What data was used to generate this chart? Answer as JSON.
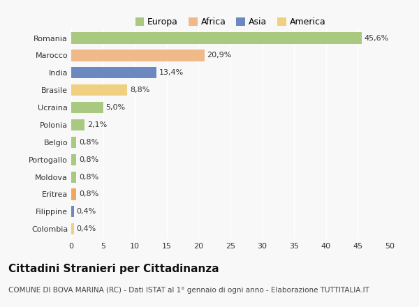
{
  "categories": [
    "Romania",
    "Marocco",
    "India",
    "Brasile",
    "Ucraina",
    "Polonia",
    "Belgio",
    "Portogallo",
    "Moldova",
    "Eritrea",
    "Filippine",
    "Colombia"
  ],
  "values": [
    45.6,
    20.9,
    13.4,
    8.8,
    5.0,
    2.1,
    0.8,
    0.8,
    0.8,
    0.8,
    0.4,
    0.4
  ],
  "labels": [
    "45,6%",
    "20,9%",
    "13,4%",
    "8,8%",
    "5,0%",
    "2,1%",
    "0,8%",
    "0,8%",
    "0,8%",
    "0,8%",
    "0,4%",
    "0,4%"
  ],
  "colors": [
    "#a8c97f",
    "#f0b98a",
    "#6b88c0",
    "#f0d080",
    "#a8c97f",
    "#a8c97f",
    "#a8c97f",
    "#a8c97f",
    "#a8c97f",
    "#f0a860",
    "#6b88c0",
    "#f0d080"
  ],
  "continents": [
    "Europa",
    "Africa",
    "Asia",
    "America"
  ],
  "legend_colors": [
    "#a8c97f",
    "#f0b98a",
    "#6b88c0",
    "#f0d080"
  ],
  "xlim": [
    0,
    50
  ],
  "xticks": [
    0,
    5,
    10,
    15,
    20,
    25,
    30,
    35,
    40,
    45,
    50
  ],
  "title": "Cittadini Stranieri per Cittadinanza",
  "subtitle": "COMUNE DI BOVA MARINA (RC) - Dati ISTAT al 1° gennaio di ogni anno - Elaborazione TUTTITALIA.IT",
  "background_color": "#f8f8f8",
  "bar_height": 0.65,
  "grid_color": "#ffffff",
  "title_fontsize": 11,
  "subtitle_fontsize": 7.5,
  "label_fontsize": 8,
  "tick_fontsize": 8,
  "legend_fontsize": 9
}
